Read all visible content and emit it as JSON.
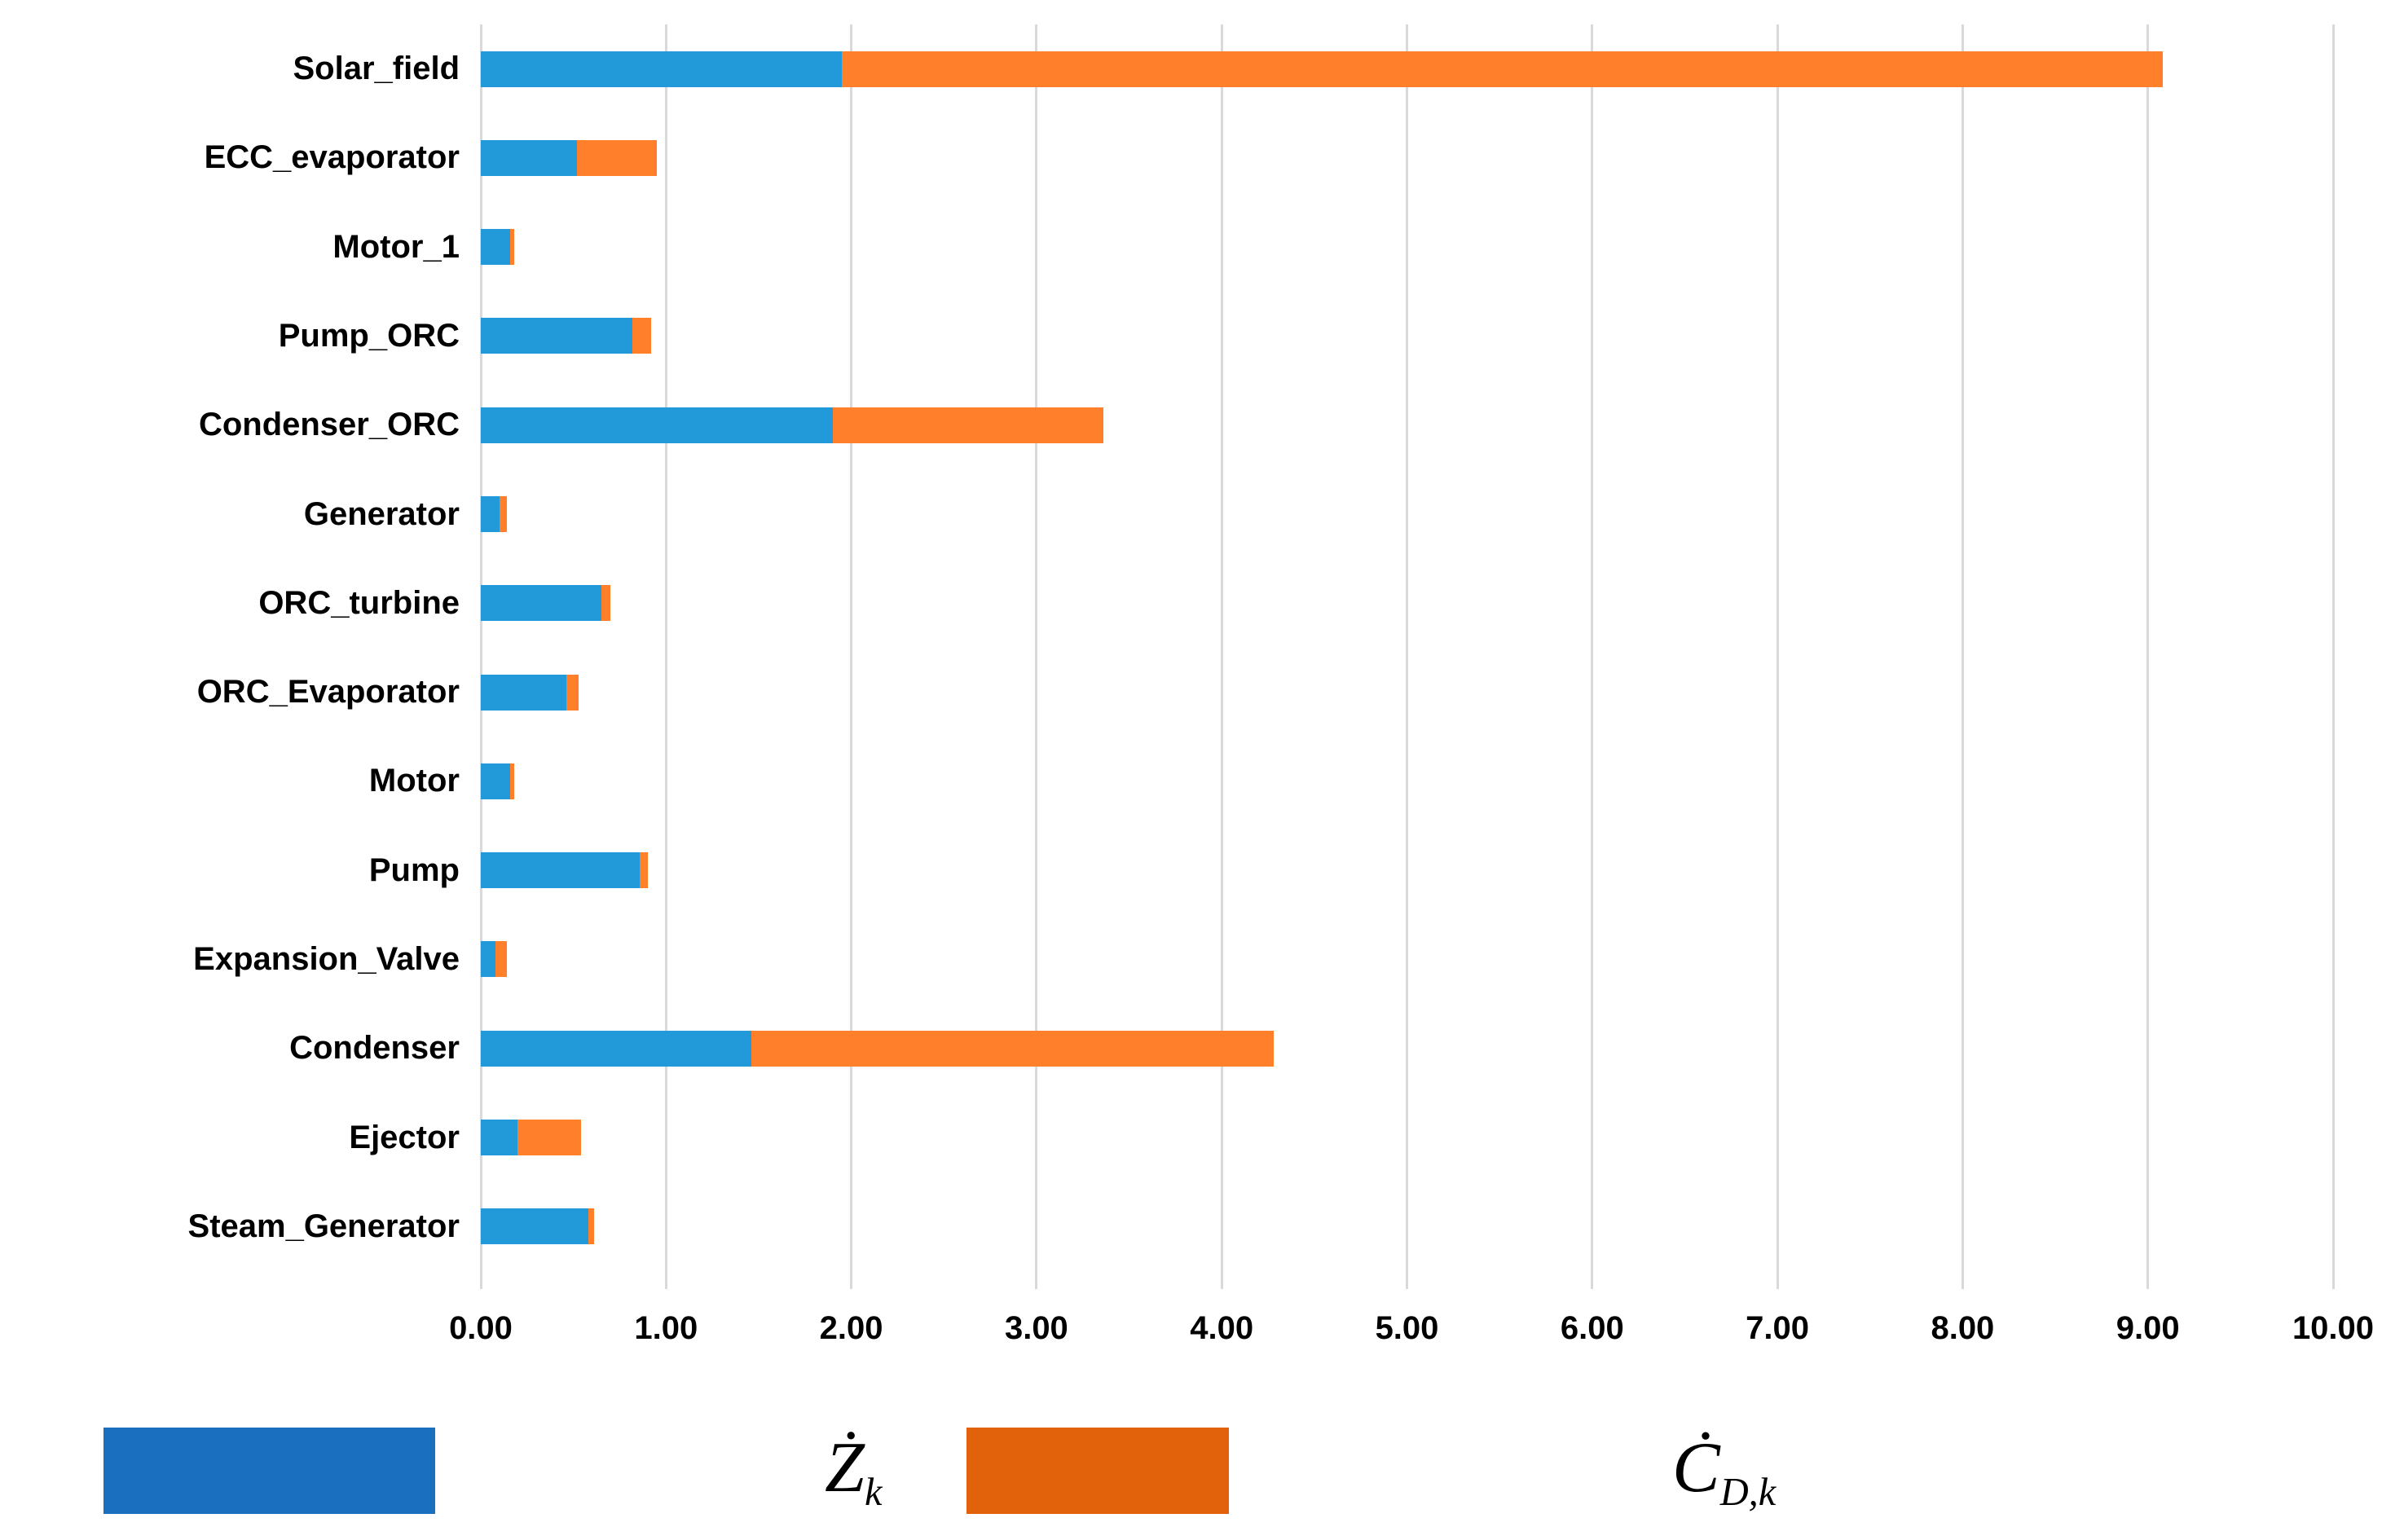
{
  "chart_data": {
    "type": "bar",
    "orientation": "horizontal",
    "stacked": true,
    "grid": true,
    "categories": [
      "Solar_field",
      "ECC_evaporator",
      "Motor_1",
      "Pump_ORC",
      "Condenser_ORC",
      "Generator",
      "ORC_turbine",
      "ORC_Evaporator",
      "Motor",
      "Pump",
      "Expansion_Valve",
      "Condenser",
      "Ejector",
      "Steam_Generator"
    ],
    "series": [
      {
        "name": "Zk",
        "color": "#2299d8",
        "values": [
          1.95,
          0.52,
          0.16,
          0.82,
          1.9,
          0.1,
          0.65,
          0.46,
          0.16,
          0.86,
          0.08,
          1.46,
          0.2,
          0.58
        ]
      },
      {
        "name": "CDk",
        "color": "#ff7f2b",
        "values": [
          7.13,
          0.43,
          0.02,
          0.1,
          1.46,
          0.04,
          0.05,
          0.07,
          0.02,
          0.04,
          0.06,
          2.82,
          0.34,
          0.03
        ]
      }
    ],
    "xlim": [
      0,
      10
    ],
    "xtick_step": 1,
    "xticks": [
      "0.00",
      "1.00",
      "2.00",
      "3.00",
      "4.00",
      "5.00",
      "6.00",
      "7.00",
      "8.00",
      "9.00",
      "10.00"
    ],
    "gridline_color": "#d9d9d9",
    "legend_position": "bottom"
  },
  "legend": {
    "items": [
      {
        "symbol": "Ż",
        "subscript": "k",
        "swatch_color": "#1a70be"
      },
      {
        "symbol": "Ċ",
        "subscript": "D,k",
        "swatch_color": "#e2620c"
      }
    ]
  }
}
